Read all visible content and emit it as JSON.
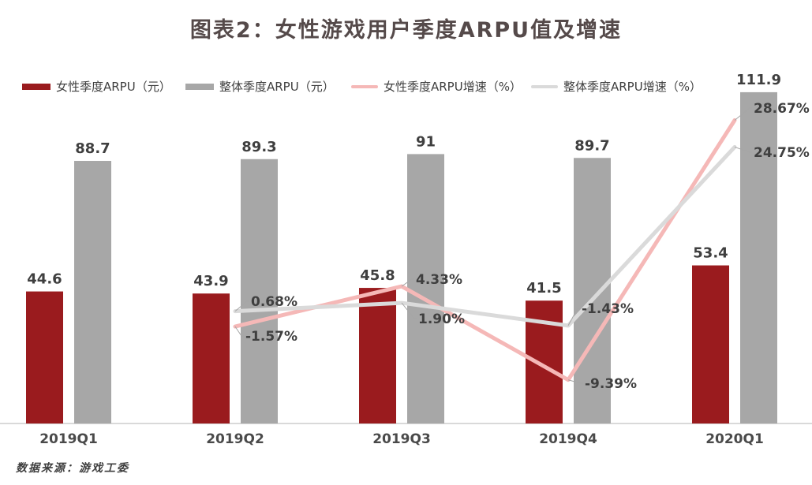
{
  "title": "图表2：女性游戏用户季度ARPU值及增速",
  "source": "数据来源：游戏工委",
  "colors": {
    "female_bar": "#9A1B1E",
    "overall_bar": "#A7A7A7",
    "female_line": "#F5B8B7",
    "overall_line": "#DADADA",
    "title_text": "#554A4A",
    "label_text": "#3F3F3F",
    "x_label_text": "#4A4A4A",
    "axis_line": "#D9D9D9",
    "connector_line": "#A6A6A6"
  },
  "legend": {
    "items": [
      {
        "label": "女性季度ARPU（元）",
        "type": "bar",
        "color_key": "female_bar"
      },
      {
        "label": "整体季度ARPU（元）",
        "type": "bar",
        "color_key": "overall_bar"
      },
      {
        "label": "女性季度ARPU增速（%）",
        "type": "line",
        "color_key": "female_line"
      },
      {
        "label": "整体季度ARPU增速（%）",
        "type": "line",
        "color_key": "overall_line"
      }
    ]
  },
  "chart_data": {
    "type": "bar",
    "subtype": "bar-line-combo",
    "title": "图表2：女性游戏用户季度ARPU值及增速",
    "categories": [
      "2019Q1",
      "2019Q2",
      "2019Q3",
      "2019Q4",
      "2020Q1"
    ],
    "bar_series": [
      {
        "name": "女性季度ARPU（元）",
        "color_key": "female_bar",
        "values": [
          44.6,
          43.9,
          45.8,
          41.5,
          53.4
        ],
        "labels": [
          "44.6",
          "43.9",
          "45.8",
          "41.5",
          "53.4"
        ]
      },
      {
        "name": "整体季度ARPU（元）",
        "color_key": "overall_bar",
        "values": [
          88.7,
          89.3,
          91,
          89.7,
          111.9
        ],
        "labels": [
          "88.7",
          "89.3",
          "91",
          "89.7",
          "111.9"
        ]
      }
    ],
    "line_series": [
      {
        "name": "女性季度ARPU增速（%）",
        "color_key": "female_line",
        "values": [
          null,
          -1.57,
          4.33,
          -9.39,
          28.67
        ],
        "labels": [
          null,
          "-1.57%",
          "4.33%",
          "-9.39%",
          "28.67%"
        ]
      },
      {
        "name": "整体季度ARPU增速（%）",
        "color_key": "overall_line",
        "values": [
          null,
          0.68,
          1.9,
          -1.43,
          24.75
        ],
        "labels": [
          null,
          "0.68%",
          "1.90%",
          "-1.43%",
          "24.75%"
        ]
      }
    ],
    "left_axis": {
      "label": "",
      "min": 0,
      "implied_max": 120,
      "visible": false
    },
    "right_axis": {
      "label": "",
      "unit": "%",
      "visible": false
    },
    "grid": false,
    "legend_position": "top",
    "xlabel": "",
    "ylabel": ""
  }
}
